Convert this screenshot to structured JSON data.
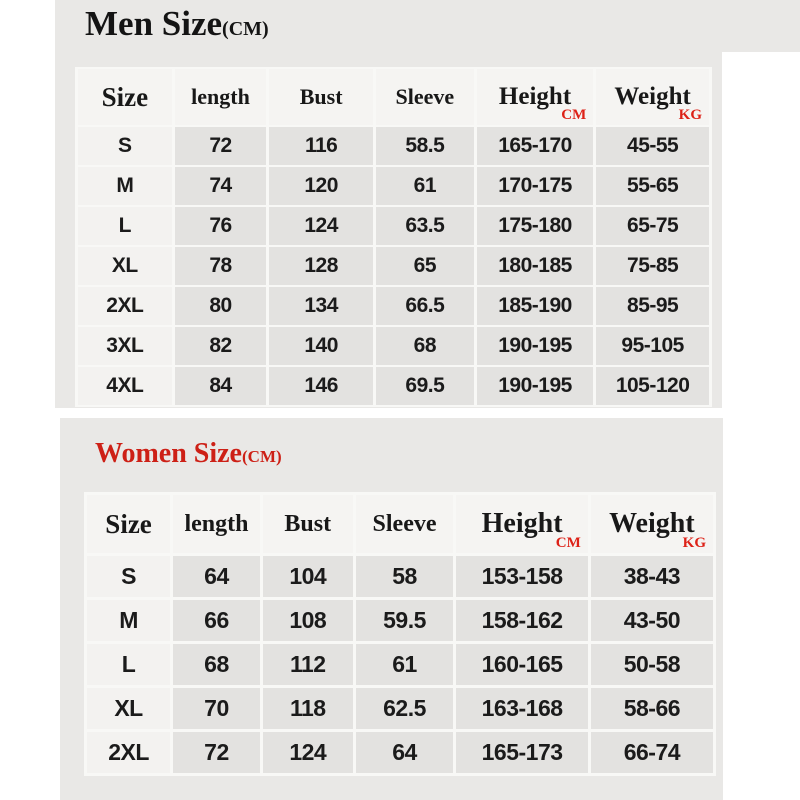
{
  "colors": {
    "panel_grey": "#e9e8e6",
    "cell_grey": "#e3e2e0",
    "cell_light": "#f3f2f0",
    "header_cell": "#f5f4f2",
    "accent_red": "#dd2117",
    "women_title_red": "#cd2016",
    "text_black": "#1b1b1b"
  },
  "men": {
    "title": "Men Size",
    "title_unit": "(CM)",
    "columns": [
      "Size",
      "length",
      "Bust",
      "Sleeve",
      "Height",
      "Weight"
    ],
    "height_unit": "CM",
    "weight_unit": "KG",
    "rows": [
      [
        "S",
        "72",
        "116",
        "58.5",
        "165-170",
        "45-55"
      ],
      [
        "M",
        "74",
        "120",
        "61",
        "170-175",
        "55-65"
      ],
      [
        "L",
        "76",
        "124",
        "63.5",
        "175-180",
        "65-75"
      ],
      [
        "XL",
        "78",
        "128",
        "65",
        "180-185",
        "75-85"
      ],
      [
        "2XL",
        "80",
        "134",
        "66.5",
        "185-190",
        "85-95"
      ],
      [
        "3XL",
        "82",
        "140",
        "68",
        "190-195",
        "95-105"
      ],
      [
        "4XL",
        "84",
        "146",
        "69.5",
        "190-195",
        "105-120"
      ]
    ]
  },
  "women": {
    "title": "Women Size",
    "title_unit": "(CM)",
    "columns": [
      "Size",
      "length",
      "Bust",
      "Sleeve",
      "Height",
      "Weight"
    ],
    "height_unit": "CM",
    "weight_unit": "KG",
    "rows": [
      [
        "S",
        "64",
        "104",
        "58",
        "153-158",
        "38-43"
      ],
      [
        "M",
        "66",
        "108",
        "59.5",
        "158-162",
        "43-50"
      ],
      [
        "L",
        "68",
        "112",
        "61",
        "160-165",
        "50-58"
      ],
      [
        "XL",
        "70",
        "118",
        "62.5",
        "163-168",
        "58-66"
      ],
      [
        "2XL",
        "72",
        "124",
        "64",
        "165-173",
        "66-74"
      ]
    ]
  }
}
